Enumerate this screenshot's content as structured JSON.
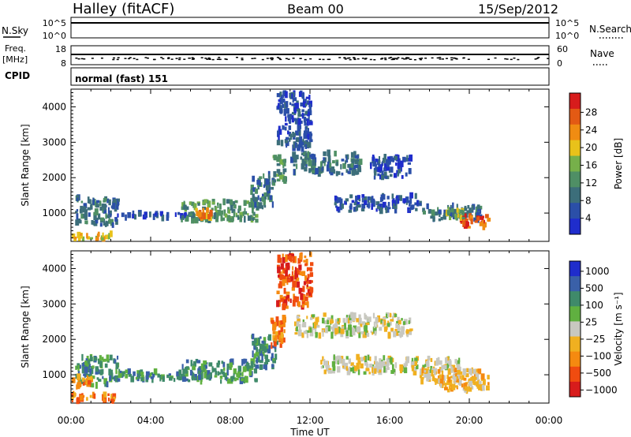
{
  "header": {
    "station": "Halley (fitACF)",
    "beam": "Beam 00",
    "date": "15/Sep/2012"
  },
  "top_panels": {
    "nsky": {
      "label": "N.Sky",
      "ticks": [
        "10^5",
        "10^0"
      ]
    },
    "nsearch": {
      "label": "N.Search",
      "ticks": [
        "10^5",
        "10^0"
      ]
    },
    "freq": {
      "label": "Freq.",
      "unit": "[MHz]",
      "ticks": [
        "18",
        "8"
      ]
    },
    "nave": {
      "label": "Nave",
      "ticks": [
        "60",
        "0"
      ]
    },
    "cpid": {
      "label": "CPID",
      "value": "normal (fast) 151"
    }
  },
  "colors": {
    "power": [
      "#1f2dcc",
      "#2b4fa8",
      "#3c6e7a",
      "#4f8f65",
      "#76b04a",
      "#e8c21a",
      "#f08c12",
      "#e35a14",
      "#d71c1c"
    ],
    "velocity": [
      "#d71c1c",
      "#f04c10",
      "#f58a10",
      "#f0b020",
      "#c8c8c0",
      "#60b040",
      "#3f8a6a",
      "#3a60a8",
      "#1f2dcc"
    ]
  },
  "chart_data": [
    {
      "type": "heatmap",
      "panel": "power",
      "xlabel": "Time UT",
      "ylabel": "Slant Range [km]",
      "x_ticks": [
        "00:00",
        "04:00",
        "08:00",
        "12:00",
        "16:00",
        "20:00",
        "00:00"
      ],
      "y_ticks": [
        1000,
        2000,
        3000,
        4000
      ],
      "ylim": [
        200,
        4500
      ],
      "colorbar_label": "Power [dB]",
      "colorbar_ticks": [
        4,
        8,
        12,
        16,
        20,
        24,
        28
      ],
      "regions": [
        {
          "t0": 0.2,
          "t1": 2.3,
          "r0": 650,
          "r1": 1450,
          "level": 2
        },
        {
          "t0": 0.0,
          "t1": 2.0,
          "r0": 250,
          "r1": 420,
          "level": 5
        },
        {
          "t0": 2.3,
          "t1": 6.0,
          "r0": 860,
          "r1": 1000,
          "level": 1
        },
        {
          "t0": 5.5,
          "t1": 9.3,
          "r0": 780,
          "r1": 1350,
          "level": 3
        },
        {
          "t0": 6.2,
          "t1": 7.0,
          "r0": 850,
          "r1": 1100,
          "level": 6
        },
        {
          "t0": 9.0,
          "t1": 10.1,
          "r0": 1150,
          "r1": 2100,
          "level": 2
        },
        {
          "t0": 10.1,
          "t1": 10.7,
          "r0": 1900,
          "r1": 2600,
          "level": 3
        },
        {
          "t0": 10.3,
          "t1": 12.0,
          "r0": 2800,
          "r1": 4400,
          "level": 1
        },
        {
          "t0": 11.0,
          "t1": 14.5,
          "r0": 2100,
          "r1": 2700,
          "level": 2
        },
        {
          "t0": 15.0,
          "t1": 17.0,
          "r0": 2000,
          "r1": 2600,
          "level": 1
        },
        {
          "t0": 13.2,
          "t1": 17.5,
          "r0": 1050,
          "r1": 1500,
          "level": 1
        },
        {
          "t0": 17.5,
          "t1": 20.5,
          "r0": 800,
          "r1": 1200,
          "level": 2
        },
        {
          "t0": 19.5,
          "t1": 21.0,
          "r0": 600,
          "r1": 950,
          "level": 7
        },
        {
          "t0": 18.8,
          "t1": 19.7,
          "r0": 850,
          "r1": 1100,
          "level": 4
        }
      ]
    },
    {
      "type": "heatmap",
      "panel": "velocity",
      "xlabel": "Time UT",
      "ylabel": "Slant Range [km]",
      "x_ticks": [
        "00:00",
        "04:00",
        "08:00",
        "12:00",
        "16:00",
        "20:00",
        "00:00"
      ],
      "y_ticks": [
        1000,
        2000,
        3000,
        4000
      ],
      "ylim": [
        200,
        4500
      ],
      "colorbar_label": "Velocity [m s⁻¹]",
      "colorbar_ticks": [
        "1000",
        "500",
        "100",
        "25",
        "−25",
        "−100",
        "−500",
        "−1000"
      ],
      "regions": [
        {
          "t0": 0.2,
          "t1": 2.3,
          "r0": 700,
          "r1": 1500,
          "level": 6
        },
        {
          "t0": 0.0,
          "t1": 1.0,
          "r0": 650,
          "r1": 950,
          "level": 2
        },
        {
          "t0": 0.0,
          "t1": 2.2,
          "r0": 250,
          "r1": 450,
          "level": 2
        },
        {
          "t0": 2.3,
          "t1": 5.5,
          "r0": 850,
          "r1": 1100,
          "level": 6
        },
        {
          "t0": 5.5,
          "t1": 9.3,
          "r0": 800,
          "r1": 1400,
          "level": 6
        },
        {
          "t0": 9.0,
          "t1": 10.3,
          "r0": 1200,
          "r1": 2100,
          "level": 6
        },
        {
          "t0": 10.0,
          "t1": 10.7,
          "r0": 1800,
          "r1": 2600,
          "level": 2
        },
        {
          "t0": 10.3,
          "t1": 12.0,
          "r0": 2900,
          "r1": 4400,
          "level": 1
        },
        {
          "t0": 11.2,
          "t1": 17.0,
          "r0": 2100,
          "r1": 2700,
          "level": 4
        },
        {
          "t0": 12.5,
          "t1": 19.5,
          "r0": 1050,
          "r1": 1500,
          "level": 4
        },
        {
          "t0": 17.5,
          "t1": 20.5,
          "r0": 750,
          "r1": 1150,
          "level": 3
        },
        {
          "t0": 18.5,
          "t1": 21.0,
          "r0": 550,
          "r1": 950,
          "level": 3
        }
      ]
    }
  ]
}
